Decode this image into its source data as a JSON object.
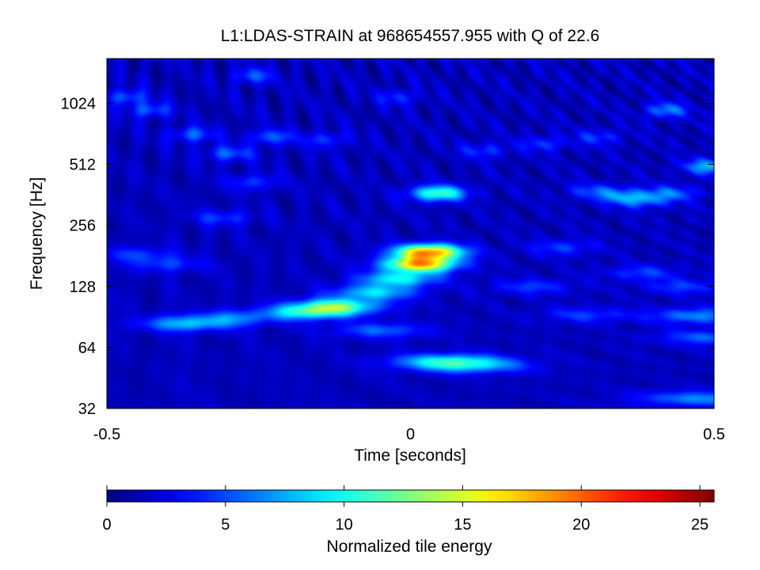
{
  "chart_data": {
    "type": "heatmap",
    "title": "L1:LDAS-STRAIN at 968654557.955 with Q of 22.6",
    "xlabel": "Time [seconds]",
    "ylabel": "Frequency [Hz]",
    "xlim": [
      -0.5,
      0.5
    ],
    "ylim": [
      32,
      1700
    ],
    "y_scale": "log2",
    "x_ticks": [
      -0.5,
      0,
      0.5
    ],
    "x_tick_labels": [
      "-0.5",
      "0",
      "0.5"
    ],
    "y_ticks": [
      32,
      64,
      128,
      256,
      512,
      1024
    ],
    "y_tick_labels": [
      "32",
      "64",
      "128",
      "256",
      "512",
      "1024"
    ],
    "grid": false,
    "colormap": "jet",
    "colorbar": {
      "label": "Normalized tile energy",
      "range": [
        0,
        25.6
      ],
      "ticks": [
        0,
        5,
        10,
        15,
        20,
        25
      ],
      "tick_labels": [
        "0",
        "5",
        "10",
        "15",
        "20",
        "25"
      ]
    },
    "background_level": 1.5,
    "features": [
      {
        "t": 0.03,
        "f": 190,
        "energy": 17
      },
      {
        "t": 0.015,
        "f": 165,
        "energy": 16
      },
      {
        "t": -0.02,
        "f": 140,
        "energy": 8
      },
      {
        "t": -0.06,
        "f": 120,
        "energy": 7
      },
      {
        "t": -0.12,
        "f": 103,
        "energy": 9
      },
      {
        "t": -0.165,
        "f": 96,
        "energy": 8
      },
      {
        "t": 0.045,
        "f": 370,
        "energy": 10
      },
      {
        "t": 0.06,
        "f": 55,
        "energy": 7
      },
      {
        "t": 0.1,
        "f": 52,
        "energy": 5
      },
      {
        "t": -0.37,
        "f": 84,
        "energy": 6
      },
      {
        "t": -0.29,
        "f": 90,
        "energy": 4
      },
      {
        "t": -0.05,
        "f": 78,
        "energy": 4
      },
      {
        "t": 0.47,
        "f": 92,
        "energy": 5
      },
      {
        "t": 0.49,
        "f": 72,
        "energy": 4
      },
      {
        "t": 0.48,
        "f": 36,
        "energy": 5
      },
      {
        "t": 0.29,
        "f": 93,
        "energy": 3
      },
      {
        "t": 0.2,
        "f": 128,
        "energy": 3
      },
      {
        "t": 0.38,
        "f": 150,
        "energy": 3
      },
      {
        "t": 0.45,
        "f": 128,
        "energy": 3
      },
      {
        "t": -0.45,
        "f": 185,
        "energy": 3
      },
      {
        "t": -0.4,
        "f": 165,
        "energy": 3
      },
      {
        "t": 0.25,
        "f": 200,
        "energy": 3
      },
      {
        "t": -0.31,
        "f": 280,
        "energy": 3
      },
      {
        "t": 0.49,
        "f": 500,
        "energy": 6
      },
      {
        "t": 0.43,
        "f": 370,
        "energy": 4
      },
      {
        "t": 0.35,
        "f": 360,
        "energy": 4
      },
      {
        "t": 0.38,
        "f": 340,
        "energy": 4
      },
      {
        "t": 0.3,
        "f": 380,
        "energy": 3
      },
      {
        "t": 0.42,
        "f": 950,
        "energy": 5
      },
      {
        "t": -0.26,
        "f": 420,
        "energy": 3
      },
      {
        "t": -0.23,
        "f": 700,
        "energy": 4
      },
      {
        "t": -0.3,
        "f": 580,
        "energy": 4
      },
      {
        "t": -0.36,
        "f": 720,
        "energy": 4
      },
      {
        "t": -0.43,
        "f": 950,
        "energy": 4
      },
      {
        "t": -0.47,
        "f": 1100,
        "energy": 4
      },
      {
        "t": -0.26,
        "f": 1400,
        "energy": 4
      },
      {
        "t": -0.14,
        "f": 680,
        "energy": 3
      },
      {
        "t": -0.02,
        "f": 1100,
        "energy": 3
      },
      {
        "t": 0.12,
        "f": 600,
        "energy": 3
      },
      {
        "t": 0.22,
        "f": 650,
        "energy": 3
      },
      {
        "t": 0.31,
        "f": 700,
        "energy": 3
      }
    ]
  }
}
